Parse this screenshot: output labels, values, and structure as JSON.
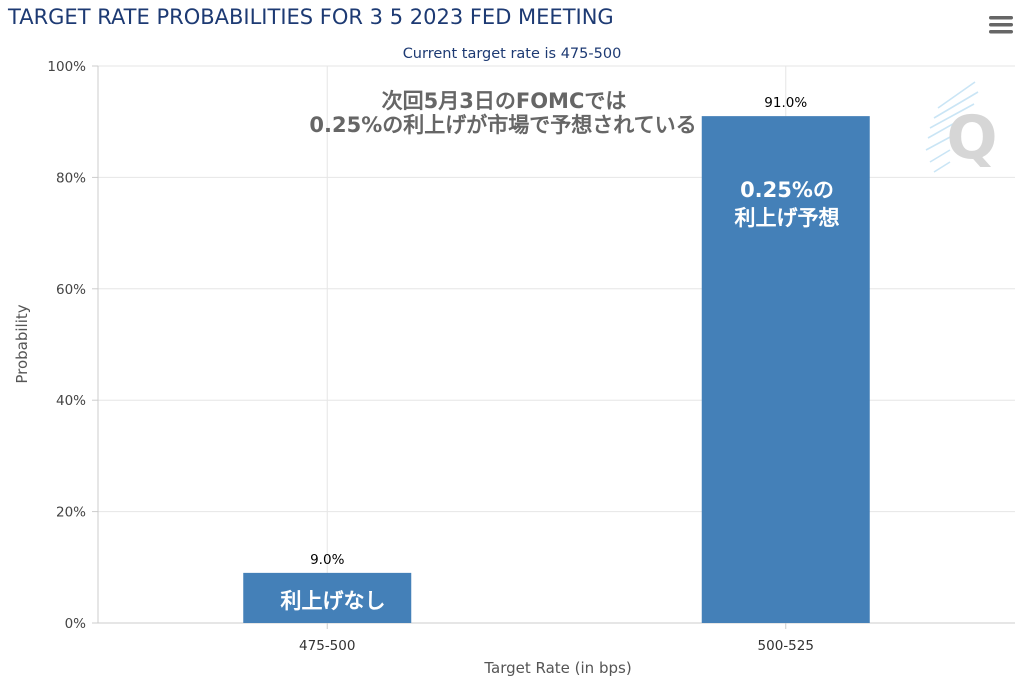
{
  "header": {
    "title": "TARGET RATE PROBABILITIES FOR 3 5 2023 FED MEETING",
    "subtitle": "Current target rate is 475-500",
    "menu_icon": "hamburger-menu-icon"
  },
  "annotation": {
    "line1": "次回5月3日のFOMCでは",
    "line2": "0.25%の利上げが市場で予想されている"
  },
  "bar_notes": {
    "no_hike": "利上げなし",
    "hike_line1": "0.25%の",
    "hike_line2": "利上げ予想"
  },
  "watermark": {
    "letter": "Q"
  },
  "colors": {
    "bar": "#4480b8",
    "title": "#1d3a73",
    "grid": "#e6e6e6",
    "annotation": "#666666"
  },
  "chart_data": {
    "type": "bar",
    "title": "TARGET RATE PROBABILITIES FOR 3 5 2023 FED MEETING",
    "subtitle": "Current target rate is 475-500",
    "categories": [
      "475-500",
      "500-525"
    ],
    "series": [
      {
        "values": [
          9.0,
          91.0
        ],
        "data_labels": [
          "9.0%",
          "91.0%"
        ]
      }
    ],
    "xlabel": "Target Rate (in bps)",
    "ylabel": "Probability",
    "ylim": [
      0,
      100
    ],
    "yticks": [
      0,
      20,
      40,
      60,
      80,
      100
    ],
    "ytick_labels": [
      "0%",
      "20%",
      "40%",
      "60%",
      "80%",
      "100%"
    ],
    "grid": true,
    "legend": "none"
  }
}
